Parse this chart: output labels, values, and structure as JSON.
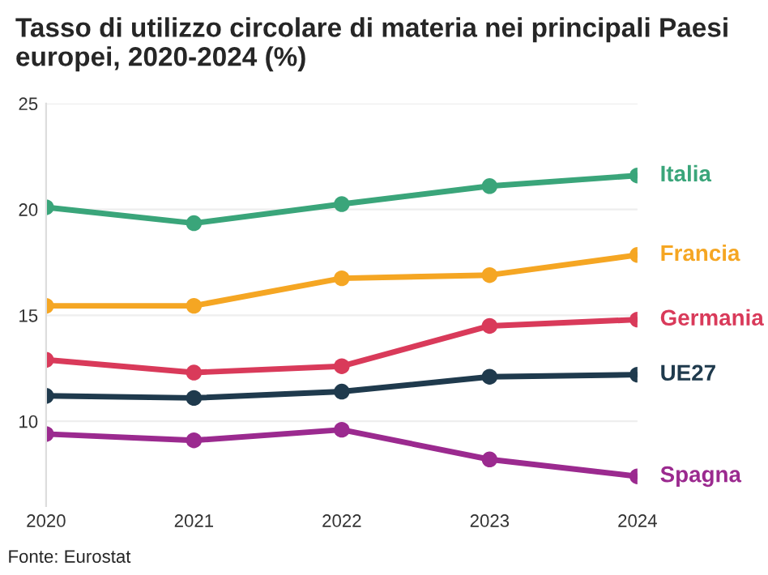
{
  "chart_data": {
    "type": "line",
    "title": "Tasso di utilizzo circolare di materia nei principali Paesi europei, 2020-2024 (%)",
    "x": [
      2020,
      2021,
      2022,
      2023,
      2024
    ],
    "xlim": [
      2020,
      2024
    ],
    "xticks": [
      2020,
      2021,
      2022,
      2023,
      2024
    ],
    "ylim": [
      6,
      25
    ],
    "yticks": [
      10,
      15,
      20,
      25
    ],
    "grid": "y",
    "marker": "circle",
    "line_style": "solid",
    "series": [
      {
        "name": "Italia",
        "color": "#3aa57a",
        "values": [
          20.1,
          19.35,
          20.25,
          21.1,
          21.6
        ]
      },
      {
        "name": "Francia",
        "color": "#f5a623",
        "values": [
          15.45,
          15.45,
          16.75,
          16.9,
          17.85
        ]
      },
      {
        "name": "Germania",
        "color": "#d93a5a",
        "values": [
          12.9,
          12.3,
          12.6,
          14.5,
          14.8
        ]
      },
      {
        "name": "UE27",
        "color": "#1f3a4d",
        "values": [
          11.2,
          11.1,
          11.4,
          12.1,
          12.2
        ]
      },
      {
        "name": "Spagna",
        "color": "#9b2a8f",
        "values": [
          9.4,
          9.1,
          9.6,
          8.2,
          7.4
        ]
      }
    ],
    "annotations": [
      "Fonte: Eurostat"
    ]
  }
}
